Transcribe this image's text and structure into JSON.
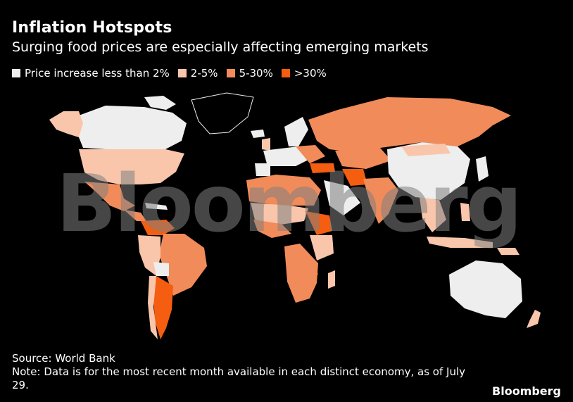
{
  "title": "Inflation Hotspots",
  "subtitle": "Surging food prices are especially affecting emerging markets",
  "legend": [
    {
      "label": "Price increase less than 2%",
      "color": "#eeeeee"
    },
    {
      "label": "2-5%",
      "color": "#f9c6ac"
    },
    {
      "label": "5-30%",
      "color": "#f28b5a"
    },
    {
      "label": ">30%",
      "color": "#f55d10"
    }
  ],
  "watermark": "Bloomberg",
  "source": "Source: World Bank",
  "note": "Note: Data is for the most recent month available in each distinct economy, as of July 29.",
  "brand": "Bloomberg",
  "colors": {
    "low": "#eeeeee",
    "mid_low": "#f9c6ac",
    "mid_high": "#f28b5a",
    "high": "#f55d10",
    "no_data": "#000000"
  }
}
